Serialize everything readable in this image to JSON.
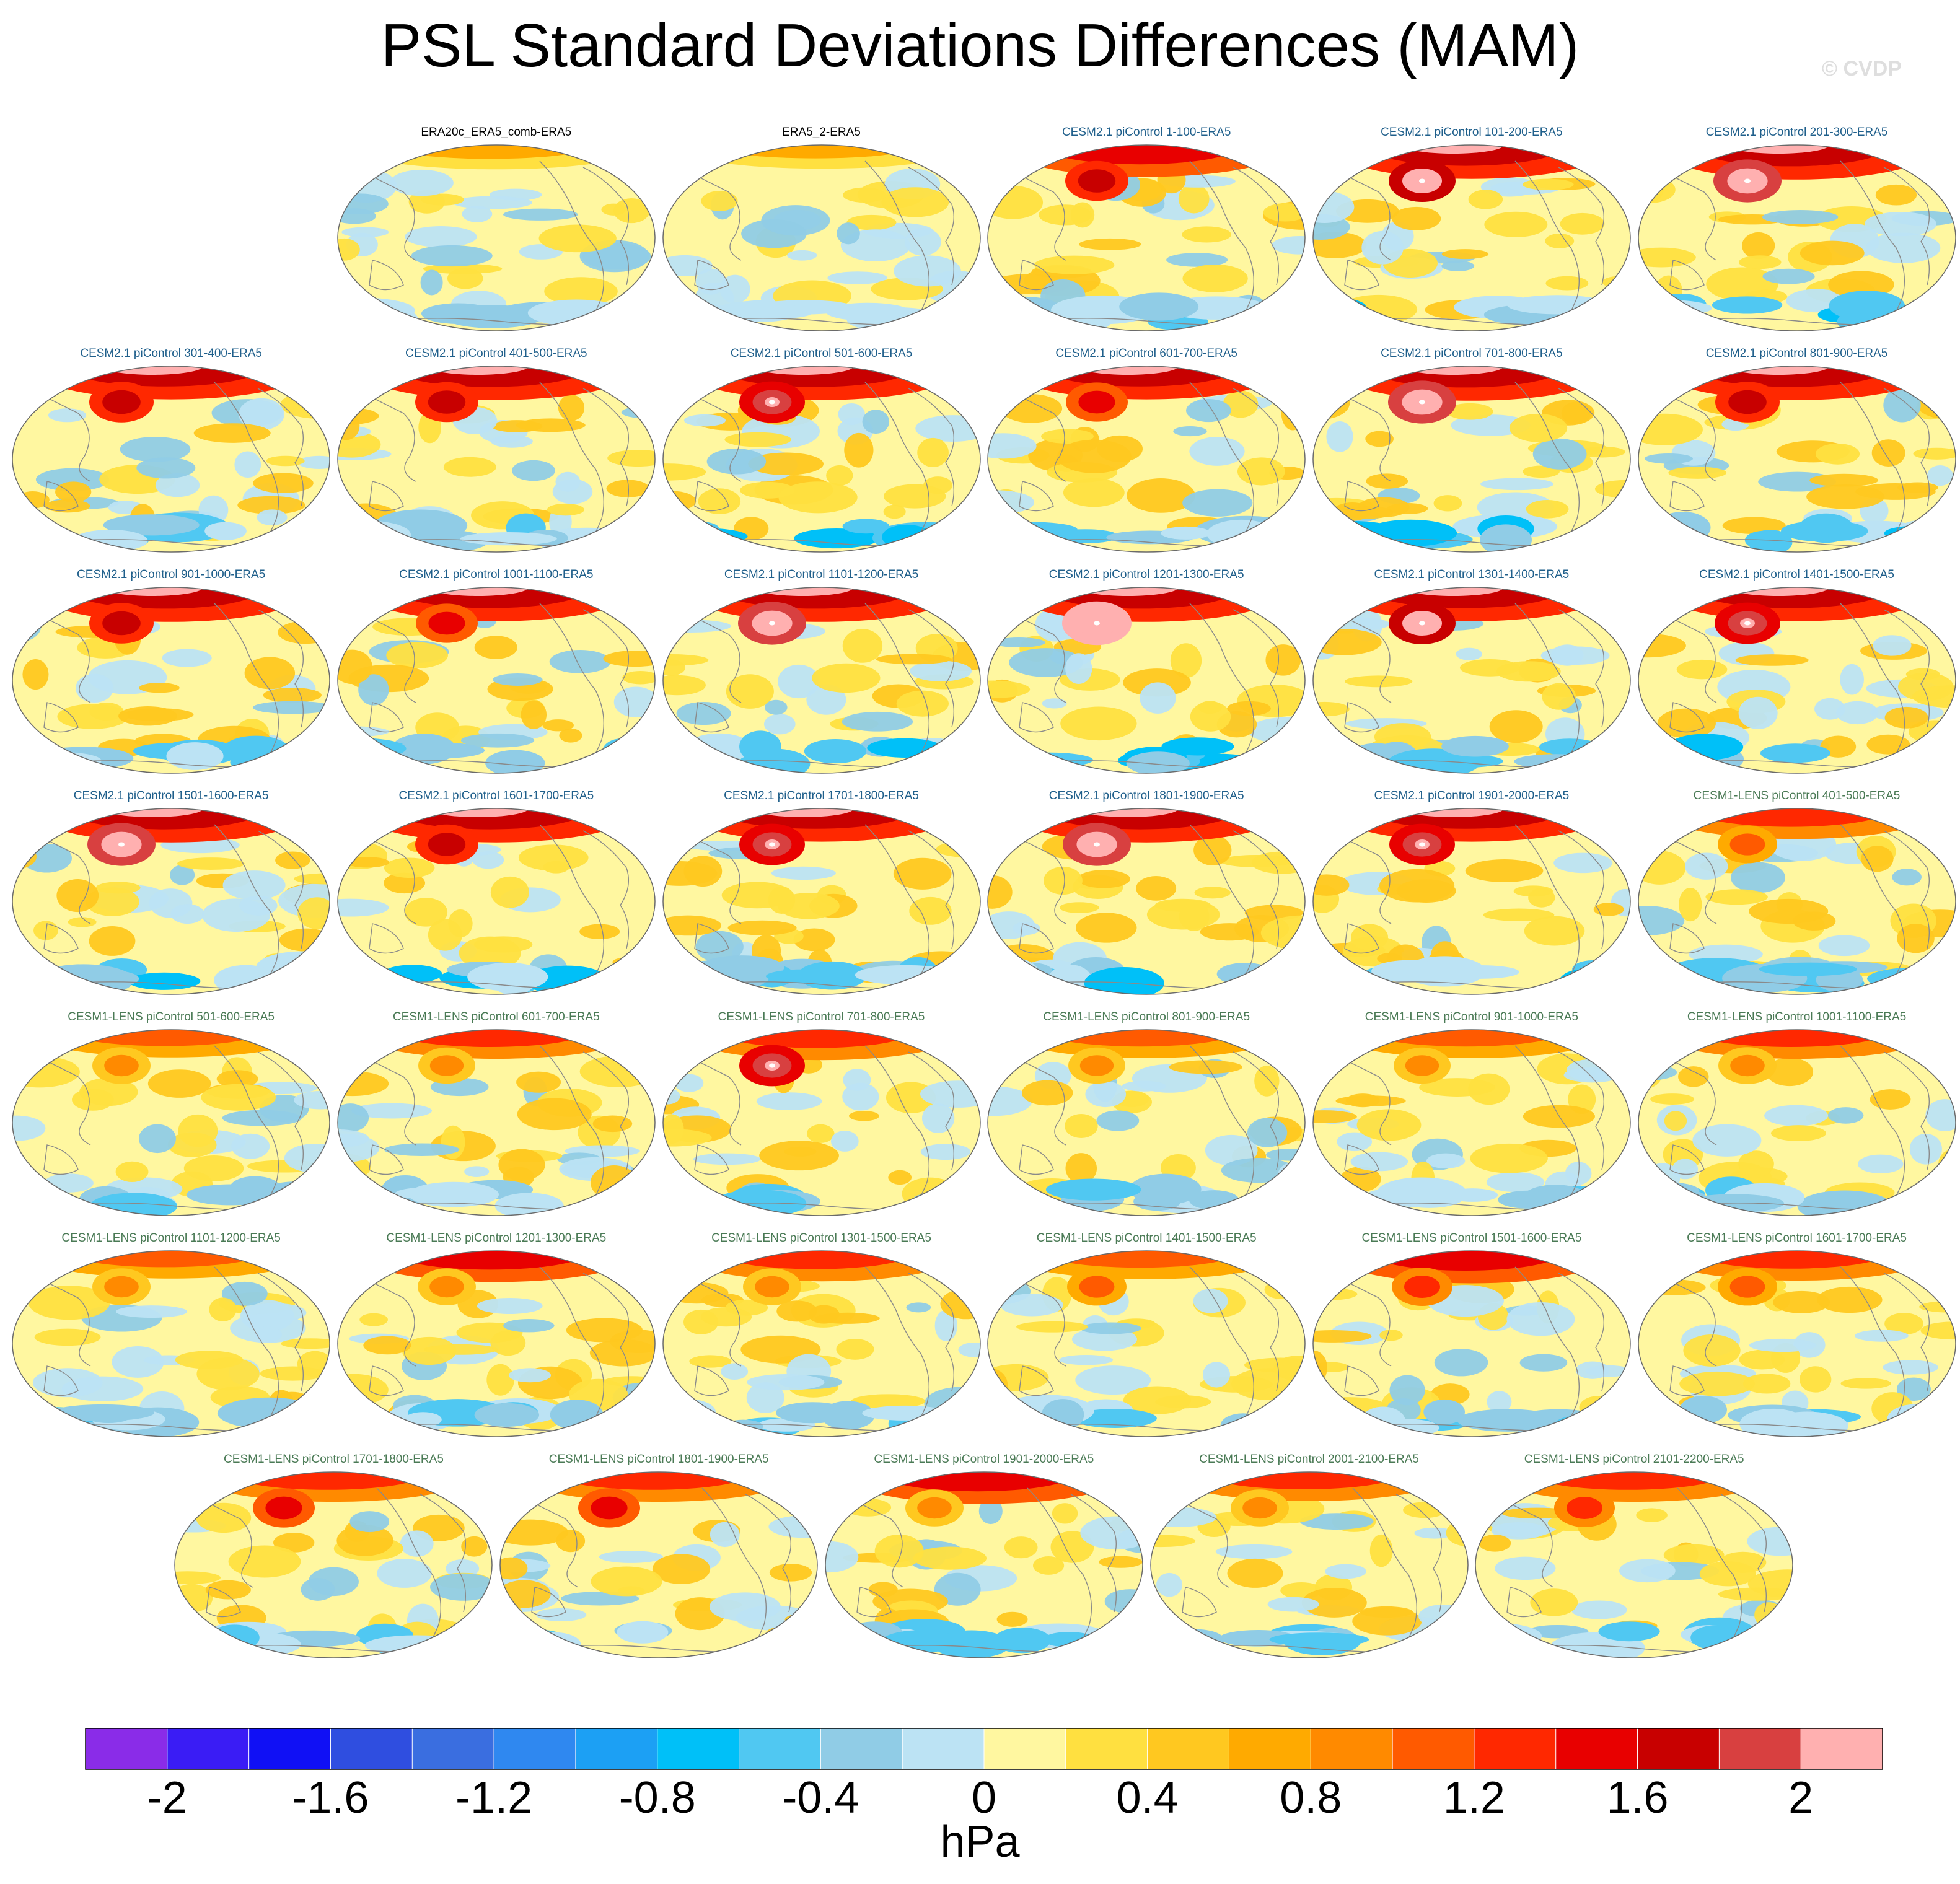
{
  "title": "PSL Standard Deviations Differences (MAM)",
  "watermark": "© CVDP",
  "chart_data": {
    "type": "heatmap",
    "title": "PSL Standard Deviations Differences (MAM)",
    "projection": "global map (Robinson), Pacific-centered",
    "colorbar": {
      "unit": "hPa",
      "levels": [
        -2.2,
        -2,
        -1.8,
        -1.6,
        -1.4,
        -1.2,
        -1,
        -0.8,
        -0.6,
        -0.4,
        -0.2,
        0,
        0.2,
        0.4,
        0.6,
        0.8,
        1,
        1.2,
        1.4,
        1.6,
        1.8,
        2,
        2.2
      ],
      "tick_labels": [
        "-2",
        "-1.6",
        "-1.2",
        "-0.8",
        "-0.4",
        "0",
        "0.4",
        "0.8",
        "1.2",
        "1.6",
        "2"
      ],
      "colors": [
        "#8a2ce8",
        "#3a1cf5",
        "#1010f5",
        "#2f4ee0",
        "#3a6ee0",
        "#2f88f0",
        "#1ca0f4",
        "#00c0f8",
        "#50c8f2",
        "#90cce6",
        "#bce3f4",
        "#fff7a0",
        "#ffe040",
        "#ffc820",
        "#ffaa00",
        "#ff8a00",
        "#ff5a00",
        "#ff2800",
        "#e80000",
        "#c80000",
        "#d84040",
        "#ffb0b0"
      ]
    },
    "panels": [
      {
        "label": "ERA20c_ERA5_comb-ERA5",
        "group": "obs",
        "intensity": 0.15,
        "spot": 0
      },
      {
        "label": "ERA5_2-ERA5",
        "group": "obs",
        "intensity": 0.1,
        "spot": 0
      },
      {
        "label": "CESM2.1 piControl 1-100-ERA5",
        "group": "cesm2",
        "intensity": 0.7,
        "spot": 0.7
      },
      {
        "label": "CESM2.1 piControl 101-200-ERA5",
        "group": "cesm2",
        "intensity": 0.85,
        "spot": 1.0
      },
      {
        "label": "CESM2.1 piControl 201-300-ERA5",
        "group": "cesm2",
        "intensity": 0.9,
        "spot": 1.1
      },
      {
        "label": "CESM2.1 piControl 301-400-ERA5",
        "group": "cesm2",
        "intensity": 0.8,
        "spot": 0.8
      },
      {
        "label": "CESM2.1 piControl 401-500-ERA5",
        "group": "cesm2",
        "intensity": 0.85,
        "spot": 0.7
      },
      {
        "label": "CESM2.1 piControl 501-600-ERA5",
        "group": "cesm2",
        "intensity": 0.85,
        "spot": 0.9
      },
      {
        "label": "CESM2.1 piControl 601-700-ERA5",
        "group": "cesm2",
        "intensity": 0.8,
        "spot": 0.6
      },
      {
        "label": "CESM2.1 piControl 701-800-ERA5",
        "group": "cesm2",
        "intensity": 0.9,
        "spot": 1.1
      },
      {
        "label": "CESM2.1 piControl 801-900-ERA5",
        "group": "cesm2",
        "intensity": 0.85,
        "spot": 0.8
      },
      {
        "label": "CESM2.1 piControl 901-1000-ERA5",
        "group": "cesm2",
        "intensity": 0.9,
        "spot": 0.8
      },
      {
        "label": "CESM2.1 piControl 1001-1100-ERA5",
        "group": "cesm2",
        "intensity": 0.85,
        "spot": 0.6
      },
      {
        "label": "CESM2.1 piControl 1101-1200-ERA5",
        "group": "cesm2",
        "intensity": 0.9,
        "spot": 1.1
      },
      {
        "label": "CESM2.1 piControl 1201-1300-ERA5",
        "group": "cesm2",
        "intensity": 0.9,
        "spot": 1.2
      },
      {
        "label": "CESM2.1 piControl 1301-1400-ERA5",
        "group": "cesm2",
        "intensity": 0.85,
        "spot": 1.0
      },
      {
        "label": "CESM2.1 piControl 1401-1500-ERA5",
        "group": "cesm2",
        "intensity": 0.85,
        "spot": 0.9
      },
      {
        "label": "CESM2.1 piControl 1501-1600-ERA5",
        "group": "cesm2",
        "intensity": 0.85,
        "spot": 1.1
      },
      {
        "label": "CESM2.1 piControl 1601-1700-ERA5",
        "group": "cesm2",
        "intensity": 0.85,
        "spot": 0.7
      },
      {
        "label": "CESM2.1 piControl 1701-1800-ERA5",
        "group": "cesm2",
        "intensity": 0.8,
        "spot": 0.9
      },
      {
        "label": "CESM2.1 piControl 1801-1900-ERA5",
        "group": "cesm2",
        "intensity": 0.85,
        "spot": 1.1
      },
      {
        "label": "CESM2.1 piControl 1901-2000-ERA5",
        "group": "cesm2",
        "intensity": 0.8,
        "spot": 0.9
      },
      {
        "label": "CESM1-LENS piControl 401-500-ERA5",
        "group": "cesm1",
        "intensity": 0.6,
        "spot": 0.4
      },
      {
        "label": "CESM1-LENS piControl 501-600-ERA5",
        "group": "cesm1",
        "intensity": 0.4,
        "spot": 0.3
      },
      {
        "label": "CESM1-LENS piControl 601-700-ERA5",
        "group": "cesm1",
        "intensity": 0.5,
        "spot": 0.2
      },
      {
        "label": "CESM1-LENS piControl 701-800-ERA5",
        "group": "cesm1",
        "intensity": 0.6,
        "spot": 0.9
      },
      {
        "label": "CESM1-LENS piControl 801-900-ERA5",
        "group": "cesm1",
        "intensity": 0.45,
        "spot": 0.2
      },
      {
        "label": "CESM1-LENS piControl 901-1000-ERA5",
        "group": "cesm1",
        "intensity": 0.45,
        "spot": 0.2
      },
      {
        "label": "CESM1-LENS piControl 1001-1100-ERA5",
        "group": "cesm1",
        "intensity": 0.5,
        "spot": 0.3
      },
      {
        "label": "CESM1-LENS piControl 1101-1200-ERA5",
        "group": "cesm1",
        "intensity": 0.4,
        "spot": 0.3
      },
      {
        "label": "CESM1-LENS piControl 1201-1300-ERA5",
        "group": "cesm1",
        "intensity": 0.65,
        "spot": 0.3
      },
      {
        "label": "CESM1-LENS piControl 1301-1500-ERA5",
        "group": "cesm1",
        "intensity": 0.6,
        "spot": 0.3
      },
      {
        "label": "CESM1-LENS piControl 1401-1500-ERA5",
        "group": "cesm1",
        "intensity": 0.45,
        "spot": 0.4
      },
      {
        "label": "CESM1-LENS piControl 1501-1600-ERA5",
        "group": "cesm1",
        "intensity": 0.75,
        "spot": 0.5
      },
      {
        "label": "CESM1-LENS piControl 1601-1700-ERA5",
        "group": "cesm1",
        "intensity": 0.55,
        "spot": 0.4
      },
      {
        "label": "CESM1-LENS piControl 1701-1800-ERA5",
        "group": "cesm1",
        "intensity": 0.55,
        "spot": 0.6
      },
      {
        "label": "CESM1-LENS piControl 1801-1900-ERA5",
        "group": "cesm1",
        "intensity": 0.55,
        "spot": 0.6
      },
      {
        "label": "CESM1-LENS piControl 1901-2000-ERA5",
        "group": "cesm1",
        "intensity": 0.7,
        "spot": 0.3
      },
      {
        "label": "CESM1-LENS piControl 2001-2100-ERA5",
        "group": "cesm1",
        "intensity": 0.5,
        "spot": 0.3
      },
      {
        "label": "CESM1-LENS piControl 2101-2200-ERA5",
        "group": "cesm1",
        "intensity": 0.55,
        "spot": 0.5
      }
    ]
  },
  "label_colors": {
    "obs": "#000000",
    "cesm2": "#1f5f8b",
    "cesm1": "#4a7a55"
  },
  "coast_color": "#8a8a8a"
}
